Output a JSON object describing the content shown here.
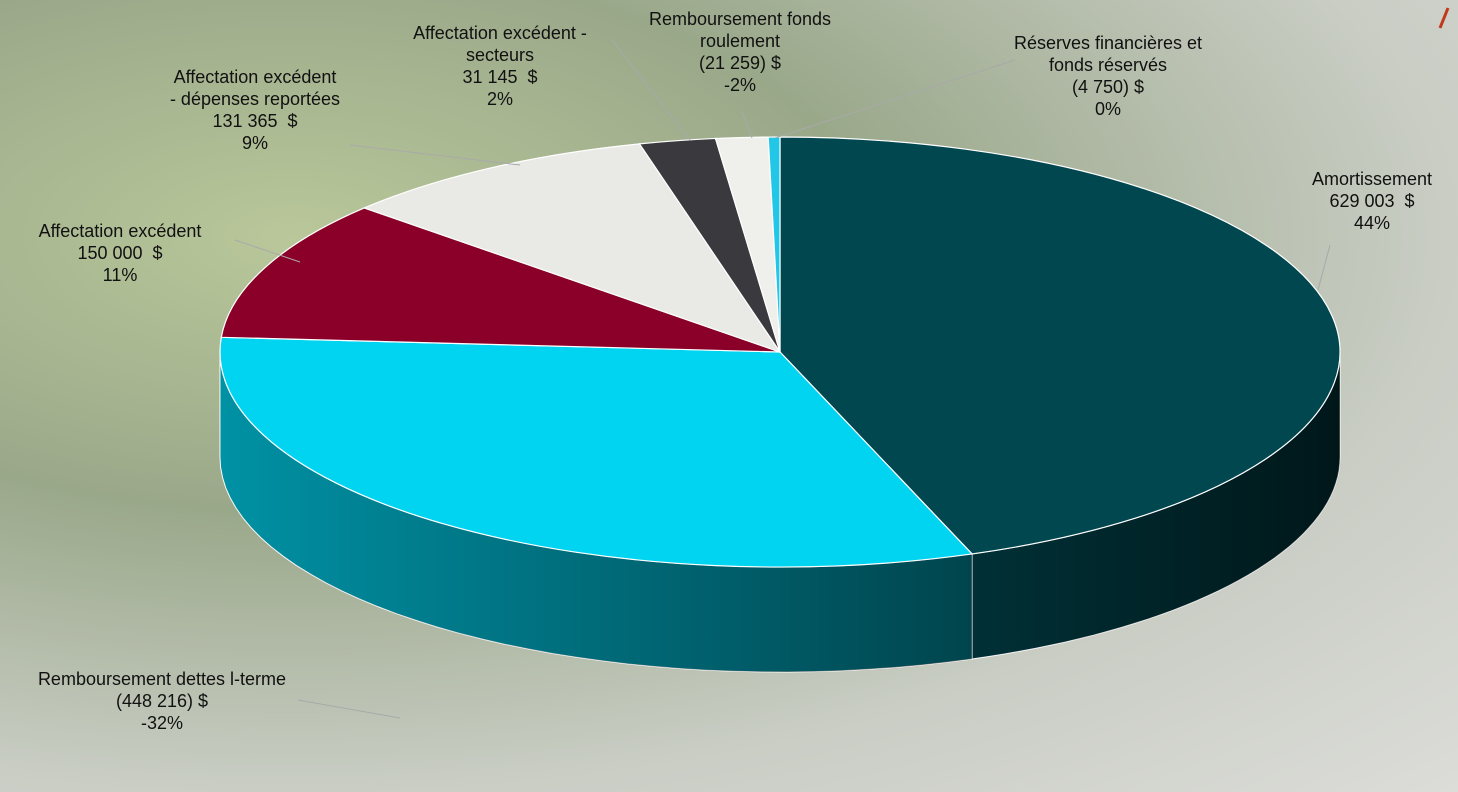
{
  "chart_data": {
    "type": "pie3d",
    "categories": [
      "Amortissement",
      "Remboursement dettes l-terme",
      "Affectation excédent",
      "Affectation excédent - dépenses reportées",
      "Affectation excédent - secteurs",
      "Remboursement fonds roulement",
      "Réserves financières et fonds réservés"
    ],
    "values": [
      629003,
      -448216,
      150000,
      131365,
      31145,
      -21259,
      -4750
    ],
    "value_labels": [
      "629 003  $",
      "(448 216) $",
      "150 000  $",
      "131 365  $",
      "31 145  $",
      "(21 259) $",
      "(4 750) $"
    ],
    "percents": [
      44,
      -32,
      11,
      9,
      2,
      -2,
      0
    ],
    "percent_labels": [
      "44%",
      "-32%",
      "11%",
      "9%",
      "2%",
      "-2%",
      "0%"
    ],
    "colors": [
      "#00474f",
      "#00d4f0",
      "#8a0028",
      "#e9e9e5",
      "#3a3a3e",
      "#efefeb",
      "#22c6e6"
    ]
  }
}
